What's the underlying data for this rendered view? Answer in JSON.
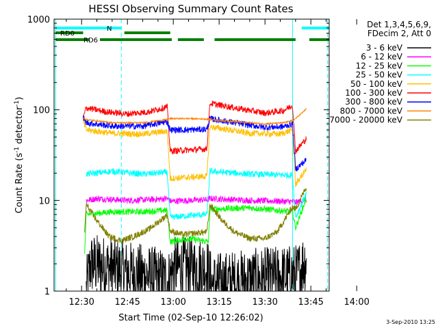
{
  "chart_data": {
    "type": "line",
    "title": "HESSI Observing Summary Count Rates",
    "xlabel": "Start Time (02-Sep-10 12:26:02)",
    "ylabel": "Count Rate (s",
    "ylabel_sup1": "-1",
    "ylabel_mid": " detector",
    "ylabel_sup2": "-1",
    "ylabel_end": ")",
    "y_scale": "log",
    "ylim": [
      1,
      1000
    ],
    "xlim_minutes": [
      -9.0,
      81.0
    ],
    "x_ticks": [
      {
        "m": 0,
        "label": "12:30"
      },
      {
        "m": 15,
        "label": "12:45"
      },
      {
        "m": 30,
        "label": "13:00"
      },
      {
        "m": 45,
        "label": "13:15"
      },
      {
        "m": 60,
        "label": "13:30"
      },
      {
        "m": 75,
        "label": "13:45"
      },
      {
        "m": 90,
        "label": "14:00"
      }
    ],
    "y_ticks": [
      {
        "v": 1,
        "label": "1"
      },
      {
        "v": 10,
        "label": "10"
      },
      {
        "v": 100,
        "label": "100"
      },
      {
        "v": 1000,
        "label": "1000"
      }
    ],
    "legend": {
      "position": "top-right",
      "header": [
        "Det 1,3,4,5,6,9,",
        "FDecim 2, Att 0"
      ]
    },
    "flags": [
      {
        "name": "N",
        "color": "#00ffff",
        "segments": [
          [
            -8.5,
            13.0
          ],
          [
            72.0,
            81.0
          ]
        ]
      },
      {
        "name": "RD0",
        "color": "#008000",
        "segments": [
          [
            -8.5,
            0.5
          ],
          [
            14.0,
            29.0
          ]
        ]
      },
      {
        "name": "RD6",
        "color": "#008000",
        "segments": [
          [
            -8.5,
            2.5
          ],
          [
            6.0,
            29.5
          ],
          [
            31.5,
            40.0
          ],
          [
            43.5,
            70.0
          ],
          [
            74.5,
            81.0
          ]
        ]
      }
    ],
    "vlines": [
      {
        "m": -8.5,
        "style": "solid",
        "color": "#00ffff"
      },
      {
        "m": 13.0,
        "style": "dashed",
        "color": "#00ffff"
      },
      {
        "m": 69.0,
        "style": "solid",
        "color": "#00ffff"
      },
      {
        "m": 80.5,
        "style": "dashed",
        "color": "#00ffff"
      }
    ],
    "series": [
      {
        "name": "3 - 6 keV",
        "color": "#000000",
        "values": [
          [
            1.5,
            1
          ],
          [
            3.0,
            2.0
          ],
          [
            28.5,
            1.3
          ],
          [
            30.0,
            1.8
          ],
          [
            41.0,
            1.8
          ],
          [
            42.5,
            1.2
          ],
          [
            70.5,
            1.5
          ],
          [
            73.5,
            2.3
          ]
        ]
      },
      {
        "name": "6 - 12 keV",
        "color": "#ff00ff",
        "values": [
          [
            1.5,
            10
          ],
          [
            5.0,
            10.5
          ],
          [
            15.0,
            10.0
          ],
          [
            25.0,
            10.3
          ],
          [
            28.0,
            10.5
          ],
          [
            29.0,
            9.8
          ],
          [
            35.0,
            10.0
          ],
          [
            41.0,
            10.2
          ],
          [
            42.0,
            10.5
          ],
          [
            55.0,
            10.0
          ],
          [
            65.0,
            9.8
          ],
          [
            69.0,
            9.7
          ],
          [
            70.0,
            9.5
          ],
          [
            73.5,
            10.2
          ]
        ]
      },
      {
        "name": "12 - 25 keV",
        "color": "#00ff00",
        "values": [
          [
            1.0,
            2.5
          ],
          [
            1.5,
            7.0
          ],
          [
            10.0,
            7.5
          ],
          [
            20.0,
            7.5
          ],
          [
            28.0,
            7.8
          ],
          [
            29.0,
            3.5
          ],
          [
            35.0,
            3.8
          ],
          [
            41.5,
            3.5
          ],
          [
            42.0,
            8.0
          ],
          [
            55.0,
            8.3
          ],
          [
            69.0,
            7.5
          ],
          [
            70.0,
            5.0
          ],
          [
            73.5,
            10.5
          ]
        ]
      },
      {
        "name": "25 - 50 keV",
        "color": "#00ffff",
        "values": [
          [
            1.5,
            19.5
          ],
          [
            10.0,
            21.0
          ],
          [
            20.0,
            19.5
          ],
          [
            28.0,
            20.5
          ],
          [
            29.0,
            6.5
          ],
          [
            35.0,
            6.8
          ],
          [
            41.0,
            7.0
          ],
          [
            42.0,
            21.0
          ],
          [
            55.0,
            19.5
          ],
          [
            69.0,
            19.0
          ],
          [
            70.0,
            6.5
          ],
          [
            73.5,
            12.0
          ]
        ]
      },
      {
        "name": "50 - 100 keV",
        "color": "#ffc000",
        "values": [
          [
            0.5,
            75
          ],
          [
            1.5,
            60
          ],
          [
            10.0,
            55
          ],
          [
            20.0,
            54
          ],
          [
            28.0,
            58
          ],
          [
            29.0,
            17.5
          ],
          [
            35.0,
            18.0
          ],
          [
            41.0,
            18.5
          ],
          [
            42.0,
            65
          ],
          [
            55.0,
            55
          ],
          [
            65.0,
            54
          ],
          [
            69.0,
            60
          ],
          [
            70.0,
            15.0
          ],
          [
            73.5,
            22
          ]
        ]
      },
      {
        "name": "100 - 300 keV",
        "color": "#ff0000",
        "values": [
          [
            0.5,
            80
          ],
          [
            1.5,
            105
          ],
          [
            8.0,
            95
          ],
          [
            15.0,
            90
          ],
          [
            22.0,
            95
          ],
          [
            28.0,
            108
          ],
          [
            29.0,
            35
          ],
          [
            35.0,
            36
          ],
          [
            41.0,
            37
          ],
          [
            42.0,
            118
          ],
          [
            50.0,
            105
          ],
          [
            60.0,
            92
          ],
          [
            66.0,
            98
          ],
          [
            69.0,
            112
          ],
          [
            70.0,
            35
          ],
          [
            73.5,
            48
          ]
        ]
      },
      {
        "name": "300 - 800 keV",
        "color": "#0000ff",
        "values": [
          [
            0.5,
            82
          ],
          [
            1.5,
            72
          ],
          [
            10.0,
            66
          ],
          [
            20.0,
            66
          ],
          [
            28.0,
            74
          ],
          [
            29.0,
            60
          ],
          [
            35.0,
            60
          ],
          [
            41.0,
            61
          ],
          [
            42.0,
            80
          ],
          [
            50.0,
            72
          ],
          [
            60.0,
            64
          ],
          [
            66.0,
            65
          ],
          [
            69.0,
            70
          ],
          [
            70.0,
            22
          ],
          [
            73.5,
            28
          ]
        ]
      },
      {
        "name": "800 - 7000 keV",
        "color": "#ff8000",
        "values": [
          [
            0.5,
            82
          ],
          [
            1.5,
            78
          ],
          [
            10.0,
            72
          ],
          [
            20.0,
            72
          ],
          [
            28.0,
            78
          ],
          [
            29.0,
            80
          ],
          [
            35.0,
            80
          ],
          [
            41.0,
            79
          ],
          [
            42.0,
            78
          ],
          [
            50.0,
            74
          ],
          [
            60.0,
            70
          ],
          [
            66.0,
            72
          ],
          [
            69.0,
            76
          ],
          [
            70.0,
            80
          ],
          [
            73.5,
            102
          ]
        ]
      },
      {
        "name": "7000 - 20000 keV",
        "color": "#808000",
        "values": [
          [
            1.0,
            4.5
          ],
          [
            1.5,
            9.0
          ],
          [
            5.0,
            6.0
          ],
          [
            9.0,
            4.0
          ],
          [
            13.0,
            3.6
          ],
          [
            17.0,
            4.0
          ],
          [
            22.0,
            4.8
          ],
          [
            27.0,
            6.5
          ],
          [
            28.0,
            7.0
          ],
          [
            29.0,
            4.6
          ],
          [
            33.0,
            4.2
          ],
          [
            41.0,
            4.5
          ],
          [
            42.0,
            9.0
          ],
          [
            46.0,
            6.0
          ],
          [
            50.0,
            4.5
          ],
          [
            55.0,
            3.8
          ],
          [
            60.0,
            3.8
          ],
          [
            64.0,
            4.5
          ],
          [
            69.0,
            8.5
          ],
          [
            70.0,
            8.0
          ],
          [
            73.5,
            14.0
          ]
        ]
      }
    ],
    "grid": false
  },
  "footer": {
    "timestamp": "3-Sep-2010 13:25"
  }
}
